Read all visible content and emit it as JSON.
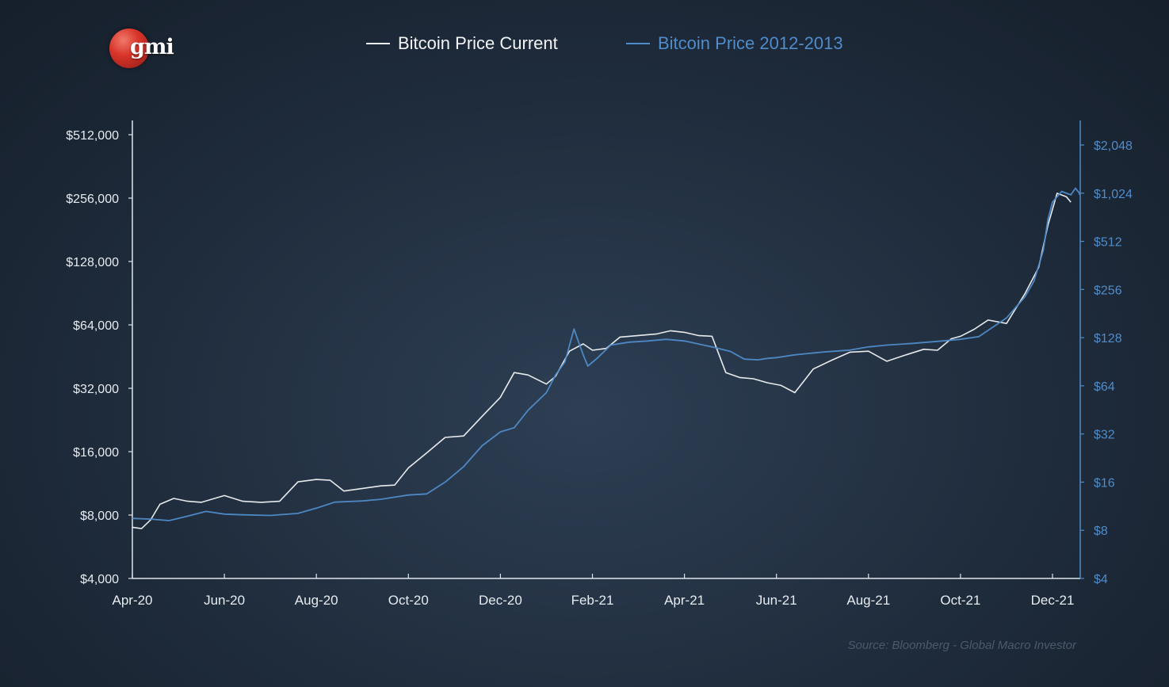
{
  "logo": {
    "text": "gmi"
  },
  "legend": {
    "current_label": "Bitcoin Price Current",
    "historic_label": "Bitcoin Price 2012-2013"
  },
  "source": "Source: Bloomberg - Global Macro Investor",
  "chart_data": {
    "type": "line",
    "title": "",
    "scale": "log2",
    "grid": false,
    "legend_position": "top-center",
    "x_ticks": [
      "Apr-20",
      "Jun-20",
      "Aug-20",
      "Oct-20",
      "Dec-20",
      "Feb-21",
      "Apr-21",
      "Jun-21",
      "Aug-21",
      "Oct-21",
      "Dec-21"
    ],
    "y_left": {
      "ylim": [
        4000,
        512000
      ],
      "ticks": [
        "$4,000",
        "$8,000",
        "$16,000",
        "$32,000",
        "$64,000",
        "$128,000",
        "$256,000",
        "$512,000"
      ],
      "color": "#e6ebf0"
    },
    "y_right": {
      "ylim": [
        4,
        2048
      ],
      "ticks": [
        "$4",
        "$8",
        "$16",
        "$32",
        "$64",
        "$128",
        "$256",
        "$512",
        "$1,024",
        "$2,048"
      ],
      "color": "#4f8cc9"
    },
    "series": [
      {
        "name": "Bitcoin Price Current",
        "axis": "left",
        "color": "#f2f4f7",
        "x": [
          0,
          0.1,
          0.2,
          0.3,
          0.45,
          0.6,
          0.75,
          1.0,
          1.2,
          1.4,
          1.6,
          1.8,
          2.0,
          2.15,
          2.3,
          2.5,
          2.7,
          2.85,
          3.0,
          3.2,
          3.4,
          3.6,
          3.8,
          4.0,
          4.15,
          4.3,
          4.5,
          4.6,
          4.75,
          4.9,
          5.0,
          5.15,
          5.3,
          5.5,
          5.7,
          5.85,
          6.0,
          6.15,
          6.3,
          6.45,
          6.6,
          6.75,
          6.9,
          7.05,
          7.2,
          7.4,
          7.6,
          7.8,
          8.0,
          8.2,
          8.4,
          8.6,
          8.75,
          8.9,
          9.0,
          9.15,
          9.3,
          9.5,
          9.7,
          9.85,
          9.95,
          10.05,
          10.15,
          10.2
        ],
        "y": [
          7000,
          6900,
          7600,
          9000,
          9600,
          9300,
          9200,
          9900,
          9300,
          9200,
          9300,
          11500,
          11800,
          11700,
          10400,
          10700,
          11000,
          11100,
          13400,
          15800,
          18700,
          19000,
          23500,
          29000,
          38000,
          37000,
          33500,
          36500,
          48000,
          52000,
          48500,
          49500,
          56000,
          57000,
          58000,
          60000,
          59000,
          57000,
          56500,
          38000,
          36000,
          35500,
          34000,
          33000,
          30500,
          39500,
          43500,
          47500,
          48000,
          43000,
          46000,
          49000,
          48500,
          55000,
          56500,
          61000,
          67500,
          65000,
          90000,
          120000,
          190000,
          270000,
          260000,
          245000
        ]
      },
      {
        "name": "Bitcoin Price 2012-2013",
        "axis": "right",
        "color": "#4f8cc9",
        "x": [
          0,
          0.2,
          0.4,
          0.6,
          0.8,
          1.0,
          1.2,
          1.5,
          1.8,
          2.0,
          2.2,
          2.5,
          2.7,
          3.0,
          3.2,
          3.4,
          3.6,
          3.8,
          4.0,
          4.15,
          4.3,
          4.5,
          4.6,
          4.7,
          4.8,
          4.85,
          4.9,
          4.95,
          5.05,
          5.2,
          5.4,
          5.6,
          5.8,
          6.0,
          6.3,
          6.5,
          6.65,
          6.8,
          6.9,
          7.0,
          7.2,
          7.5,
          7.8,
          8.0,
          8.2,
          8.5,
          8.8,
          9.0,
          9.2,
          9.5,
          9.7,
          9.8,
          9.9,
          9.95,
          10.0,
          10.1,
          10.2,
          10.25,
          10.3,
          10.35
        ],
        "y": [
          9.5,
          9.4,
          9.2,
          9.8,
          10.5,
          10.1,
          10.0,
          9.9,
          10.2,
          11.0,
          12.0,
          12.2,
          12.5,
          13.3,
          13.5,
          16,
          20,
          27,
          33,
          35,
          45,
          58,
          75,
          90,
          145,
          120,
          100,
          85,
          95,
          115,
          120,
          122,
          125,
          122,
          112,
          105,
          94,
          93,
          95,
          96,
          100,
          104,
          107,
          112,
          115,
          118,
          122,
          125,
          130,
          170,
          230,
          290,
          450,
          700,
          900,
          1050,
          1000,
          1100,
          1024,
          1000
        ]
      }
    ]
  }
}
